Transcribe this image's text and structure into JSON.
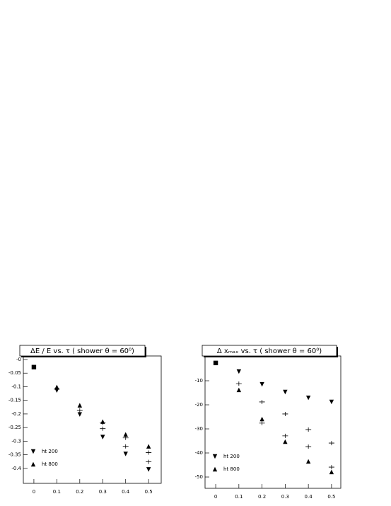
{
  "chart_data": [
    {
      "type": "scatter",
      "title": "ΔE / E vs. τ ( shower θ = 60⁰)",
      "x": [
        0,
        0.1,
        0.2,
        0.3,
        0.4,
        0.5
      ],
      "xlim": [
        -0.046,
        0.555
      ],
      "xticks": [
        0,
        0.1,
        0.2,
        0.3,
        0.4,
        0.5
      ],
      "ylim": [
        -0.455,
        0.013
      ],
      "yticks": [
        {
          "value": 0,
          "label": "-0"
        },
        -0.05,
        -0.1,
        -0.15,
        -0.2,
        -0.25,
        -0.3,
        -0.35,
        -0.4
      ],
      "legend": "lower left",
      "series": [
        {
          "marker": "square",
          "color": "#000000",
          "values": [
            -0.028,
            null,
            null,
            null,
            null,
            null
          ]
        },
        {
          "name": "ht 200",
          "marker": "down",
          "color": "#000000",
          "values": [
            null,
            -0.114,
            -0.202,
            -0.285,
            -0.347,
            -0.404
          ]
        },
        {
          "name": "ht 800",
          "marker": "up",
          "color": "#000000",
          "values": [
            null,
            -0.101,
            -0.168,
            -0.228,
            -0.275,
            -0.319
          ]
        },
        {
          "marker": "cross",
          "color": "#000000",
          "values": [
            null,
            -0.109,
            -0.187,
            -0.254,
            -0.319,
            -0.376
          ]
        },
        {
          "marker": "cross",
          "color": "#000000",
          "values": [
            null,
            null,
            null,
            -0.233,
            -0.288,
            -0.342
          ]
        }
      ]
    },
    {
      "type": "scatter",
      "title": "Δ xₘₐₓ vs. τ ( shower θ = 60⁰)",
      "x": [
        0,
        0.1,
        0.2,
        0.3,
        0.4,
        0.5
      ],
      "xlim": [
        -0.046,
        0.54
      ],
      "xticks": [
        0,
        0.1,
        0.2,
        0.3,
        0.4,
        0.5
      ],
      "ylim": [
        -54.7,
        0.3
      ],
      "yticks": [
        -10,
        -20,
        -30,
        -40,
        -50
      ],
      "legend": "lower left",
      "series": [
        {
          "marker": "square",
          "color": "#000000",
          "values": [
            -2.6,
            null,
            null,
            null,
            null,
            null
          ]
        },
        {
          "name": "ht 200",
          "marker": "down",
          "color": "#000000",
          "values": [
            null,
            -6.2,
            -11.5,
            -14.7,
            -17.1,
            -18.8
          ]
        },
        {
          "name": "ht 800",
          "marker": "up",
          "color": "#000000",
          "values": [
            null,
            -13.8,
            -25.9,
            -35.3,
            -43.5,
            -47.9
          ]
        },
        {
          "marker": "cross",
          "color": "#000000",
          "values": [
            null,
            -11.2,
            -18.8,
            -23.8,
            -30.3,
            -35.9
          ]
        },
        {
          "marker": "cross",
          "color": "#000000",
          "values": [
            null,
            null,
            -27.6,
            -32.9,
            -37.4,
            -45.9
          ]
        }
      ]
    }
  ]
}
